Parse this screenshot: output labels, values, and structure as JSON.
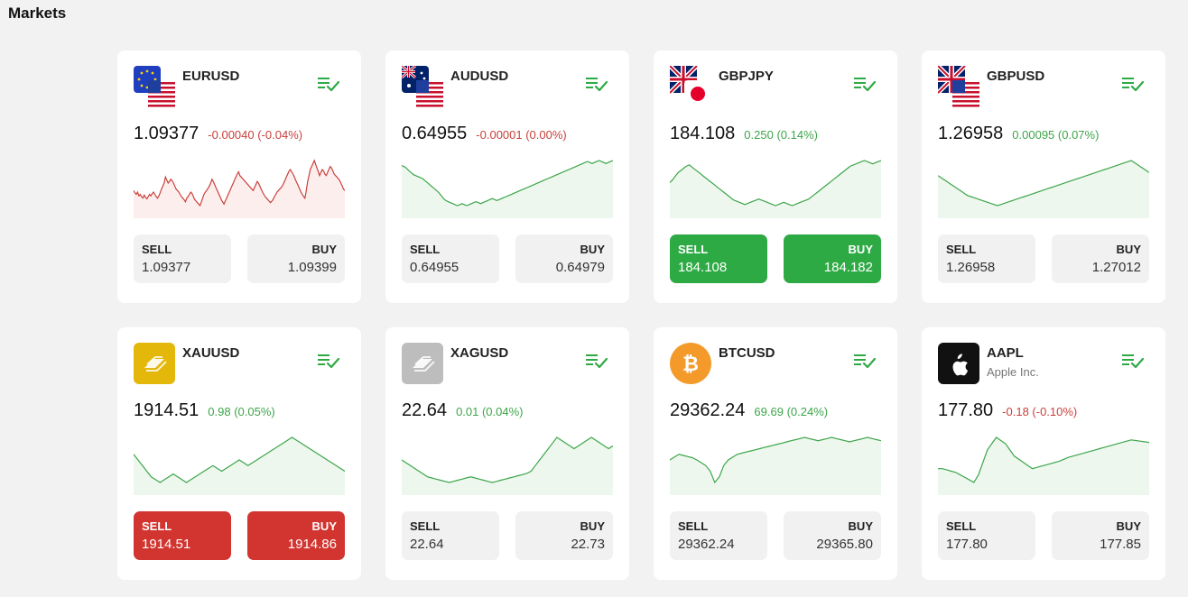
{
  "page": {
    "title": "Markets"
  },
  "colors": {
    "up": "#3da54a",
    "down": "#c8413b",
    "up_fill": "#edf7ee",
    "down_fill": "#fdeeee",
    "buy_sell_green": "#2eaa45",
    "buy_sell_red": "#d2342f"
  },
  "cards": [
    {
      "symbol": "EURUSD",
      "subname": "",
      "logo": "eu-us-flag",
      "price": "1.09377",
      "change": "-0.00040 (-0.04%)",
      "trend": "down",
      "sell_label": "SELL",
      "sell": "1.09377",
      "buy_label": "BUY",
      "buy": "1.09399",
      "highlight": "none",
      "spark": [
        60,
        57,
        55,
        58,
        53,
        55,
        52,
        50,
        54,
        51,
        49,
        52,
        55,
        53,
        56,
        58,
        55,
        52,
        50,
        53,
        57,
        62,
        66,
        70,
        78,
        74,
        70,
        72,
        75,
        73,
        70,
        66,
        62,
        60,
        58,
        55,
        52,
        50,
        48,
        45,
        50,
        52,
        55,
        58,
        56,
        52,
        48,
        46,
        44,
        42,
        40,
        45,
        50,
        55,
        58,
        60,
        63,
        66,
        70,
        75,
        72,
        68,
        64,
        60,
        56,
        52,
        48,
        45,
        42,
        46,
        50,
        54,
        58,
        62,
        66,
        70,
        74,
        78,
        82,
        85,
        80,
        78,
        76,
        74,
        72,
        70,
        68,
        66,
        64,
        62,
        60,
        64,
        68,
        72,
        70,
        66,
        62,
        58,
        55,
        52,
        50,
        48,
        46,
        44,
        46,
        48,
        52,
        55,
        58,
        60,
        62,
        64,
        66,
        70,
        74,
        78,
        82,
        86,
        88,
        85,
        82,
        78,
        74,
        70,
        66,
        62,
        58,
        55,
        52,
        50,
        60,
        72,
        80,
        88,
        92,
        96,
        100,
        95,
        90,
        85,
        80,
        84,
        88,
        86,
        82,
        80,
        84,
        88,
        92,
        90,
        86,
        82,
        80,
        78,
        76,
        74,
        70,
        66,
        62,
        60
      ]
    },
    {
      "symbol": "AUDUSD",
      "subname": "",
      "logo": "au-us-flag",
      "price": "0.64955",
      "change": "-0.00001 (0.00%)",
      "trend": "up",
      "sell_label": "SELL",
      "sell": "0.64955",
      "buy_label": "BUY",
      "buy": "0.64979",
      "highlight": "none",
      "spark": [
        90,
        88,
        85,
        80,
        76,
        72,
        70,
        68,
        66,
        64,
        60,
        56,
        52,
        48,
        44,
        40,
        36,
        30,
        24,
        20,
        18,
        16,
        14,
        12,
        10,
        12,
        14,
        12,
        10,
        12,
        14,
        16,
        18,
        16,
        14,
        16,
        18,
        20,
        22,
        24,
        22,
        20,
        22,
        24,
        26,
        28,
        30,
        32,
        34,
        36,
        38,
        40,
        42,
        44,
        46,
        48,
        50,
        52,
        54,
        56,
        58,
        60,
        62,
        64,
        66,
        68,
        70,
        72,
        74,
        76,
        78,
        80,
        82,
        84,
        86,
        88,
        90,
        92,
        94,
        96,
        98,
        96,
        94,
        96,
        98,
        100,
        98,
        96,
        94,
        96,
        98,
        100
      ]
    },
    {
      "symbol": "GBPJPY",
      "subname": "",
      "logo": "gb-jp-flag",
      "price": "184.108",
      "change": "0.250 (0.14%)",
      "trend": "up",
      "sell_label": "SELL",
      "sell": "184.108",
      "buy_label": "BUY",
      "buy": "184.182",
      "highlight": "green",
      "spark": [
        60,
        65,
        72,
        78,
        82,
        86,
        90,
        92,
        88,
        84,
        80,
        76,
        72,
        68,
        64,
        60,
        56,
        52,
        48,
        44,
        40,
        36,
        32,
        28,
        26,
        24,
        22,
        20,
        22,
        24,
        26,
        28,
        30,
        28,
        26,
        24,
        22,
        20,
        18,
        20,
        22,
        24,
        22,
        20,
        18,
        20,
        22,
        24,
        26,
        28,
        30,
        34,
        38,
        42,
        46,
        50,
        54,
        58,
        62,
        66,
        70,
        74,
        78,
        82,
        86,
        90,
        92,
        94,
        96,
        98,
        100,
        98,
        96,
        94,
        96,
        98,
        100
      ]
    },
    {
      "symbol": "GBPUSD",
      "subname": "",
      "logo": "gb-us-flag",
      "price": "1.26958",
      "change": "0.00095 (0.07%)",
      "trend": "up",
      "sell_label": "SELL",
      "sell": "1.26958",
      "buy_label": "BUY",
      "buy": "1.27012",
      "highlight": "none",
      "spark": [
        70,
        66,
        62,
        58,
        54,
        50,
        46,
        42,
        38,
        34,
        30,
        28,
        26,
        24,
        22,
        20,
        18,
        16,
        14,
        12,
        10,
        12,
        14,
        16,
        18,
        20,
        22,
        24,
        26,
        28,
        30,
        32,
        34,
        36,
        38,
        40,
        42,
        44,
        46,
        48,
        50,
        52,
        54,
        56,
        58,
        60,
        62,
        64,
        66,
        68,
        70,
        72,
        74,
        76,
        78,
        80,
        82,
        84,
        86,
        88,
        90,
        92,
        94,
        96,
        98,
        100,
        96,
        92,
        88,
        84,
        80,
        76
      ]
    },
    {
      "symbol": "XAUUSD",
      "subname": "",
      "logo": "gold-bars",
      "price": "1914.51",
      "change": "0.98 (0.05%)",
      "trend": "up",
      "sell_label": "SELL",
      "sell": "1914.51",
      "buy_label": "BUY",
      "buy": "1914.86",
      "highlight": "red",
      "spark": [
        70,
        60,
        50,
        40,
        30,
        25,
        20,
        25,
        30,
        35,
        30,
        25,
        20,
        25,
        30,
        35,
        40,
        45,
        50,
        45,
        40,
        45,
        50,
        55,
        60,
        55,
        50,
        55,
        60,
        65,
        70,
        75,
        80,
        85,
        90,
        95,
        100,
        95,
        90,
        85,
        80,
        75,
        70,
        65,
        60,
        55,
        50,
        45,
        40
      ]
    },
    {
      "symbol": "XAGUSD",
      "subname": "",
      "logo": "silver-bars",
      "price": "22.64",
      "change": "0.01 (0.04%)",
      "trend": "up",
      "sell_label": "SELL",
      "sell": "22.64",
      "buy_label": "BUY",
      "buy": "22.73",
      "highlight": "none",
      "spark": [
        60,
        55,
        50,
        45,
        40,
        35,
        30,
        28,
        26,
        24,
        22,
        20,
        22,
        24,
        26,
        28,
        30,
        28,
        26,
        24,
        22,
        20,
        22,
        24,
        26,
        28,
        30,
        32,
        34,
        36,
        40,
        50,
        60,
        70,
        80,
        90,
        100,
        95,
        90,
        85,
        80,
        85,
        90,
        95,
        100,
        95,
        90,
        85,
        80,
        85
      ]
    },
    {
      "symbol": "BTCUSD",
      "subname": "",
      "logo": "bitcoin",
      "price": "29362.24",
      "change": "69.69 (0.24%)",
      "trend": "up",
      "sell_label": "SELL",
      "sell": "29362.24",
      "buy_label": "BUY",
      "buy": "29365.80",
      "highlight": "none",
      "spark": [
        60,
        65,
        70,
        68,
        66,
        64,
        60,
        55,
        50,
        40,
        20,
        30,
        50,
        60,
        65,
        70,
        72,
        74,
        76,
        78,
        80,
        82,
        84,
        86,
        88,
        90,
        92,
        94,
        96,
        98,
        100,
        98,
        96,
        94,
        96,
        98,
        100,
        98,
        96,
        94,
        92,
        94,
        96,
        98,
        100,
        98,
        96,
        94
      ]
    },
    {
      "symbol": "AAPL",
      "subname": "Apple Inc.",
      "logo": "apple",
      "price": "177.80",
      "change": "-0.18 (-0.10%)",
      "trend": "up",
      "sell_label": "SELL",
      "sell": "177.80",
      "buy_label": "BUY",
      "buy": "177.85",
      "highlight": "none",
      "spark": [
        40,
        40,
        38,
        36,
        34,
        30,
        26,
        22,
        18,
        30,
        50,
        70,
        80,
        90,
        85,
        80,
        70,
        60,
        55,
        50,
        45,
        40,
        42,
        44,
        46,
        48,
        50,
        52,
        55,
        58,
        60,
        62,
        64,
        66,
        68,
        70,
        72,
        74,
        76,
        78,
        80,
        82,
        84,
        86,
        85,
        84,
        83,
        82
      ]
    }
  ]
}
